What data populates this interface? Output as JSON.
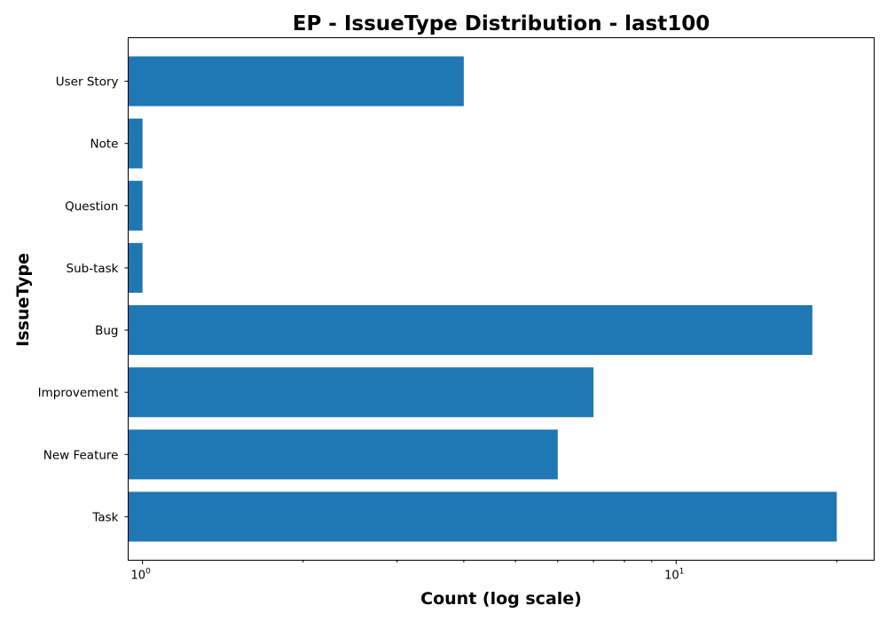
{
  "chart_data": {
    "type": "bar",
    "orientation": "horizontal",
    "title": "EP - IssueType Distribution - last100",
    "xlabel": "Count (log scale)",
    "ylabel": "IssueType",
    "x_scale": "log",
    "xlim": [
      0.94,
      23.5
    ],
    "x_ticks": [
      {
        "value": 1,
        "base": "10",
        "exp": "0"
      },
      {
        "value": 10,
        "base": "10",
        "exp": "1"
      }
    ],
    "categories": [
      "Task",
      "New Feature",
      "Improvement",
      "Bug",
      "Sub-task",
      "Question",
      "Note",
      "User Story"
    ],
    "values": [
      20,
      6,
      7,
      18,
      1,
      1,
      1,
      4
    ],
    "bar_color": "#1f77b4",
    "grid": false,
    "legend": "none"
  }
}
